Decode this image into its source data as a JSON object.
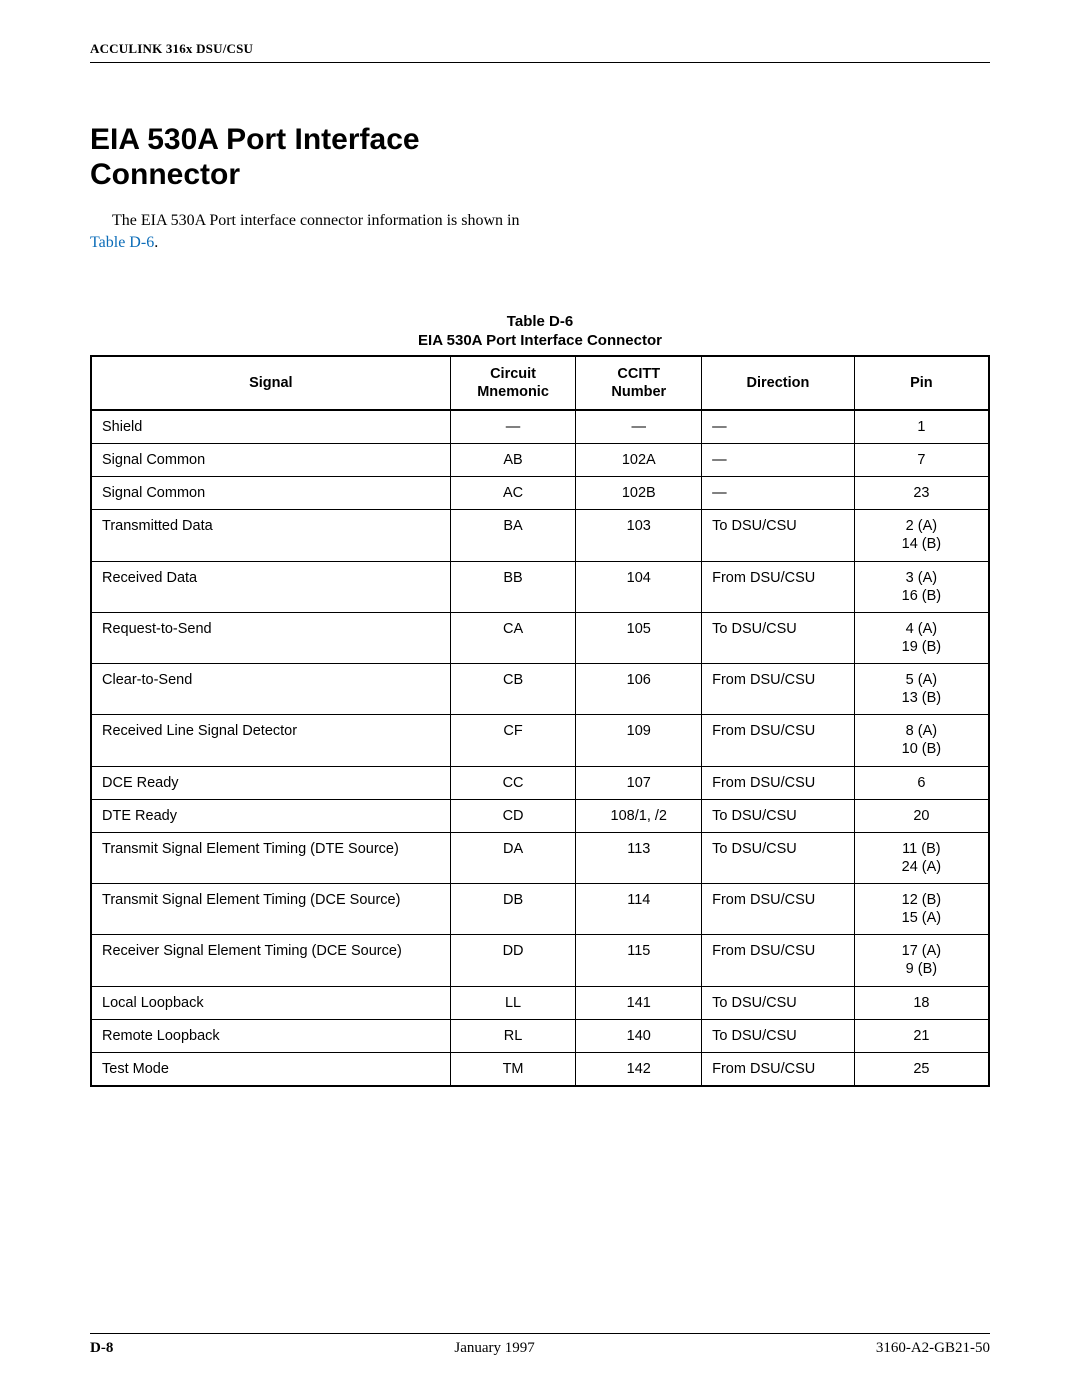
{
  "header": {
    "product": "ACCULINK 316x DSU/CSU"
  },
  "title": "EIA 530A Port Interface\nConnector",
  "intro": {
    "pre": "The EIA 530A Port interface connector information is shown in ",
    "link": "Table D-6",
    "post": "."
  },
  "table": {
    "caption_top": "Table D-6",
    "caption_sub": "EIA 530A Port Interface Connector",
    "columns": [
      "Signal",
      "Circuit\nMnemonic",
      "CCITT\nNumber",
      "Direction",
      "Pin"
    ],
    "rows": [
      {
        "signal": "Shield",
        "mnemonic": "—",
        "ccitt": "—",
        "direction": "—",
        "pin": "1"
      },
      {
        "signal": "Signal Common",
        "mnemonic": "AB",
        "ccitt": "102A",
        "direction": "—",
        "pin": "7"
      },
      {
        "signal": "Signal Common",
        "mnemonic": "AC",
        "ccitt": "102B",
        "direction": "—",
        "pin": "23"
      },
      {
        "signal": "Transmitted Data",
        "mnemonic": "BA",
        "ccitt": "103",
        "direction": "To DSU/CSU",
        "pin": "2 (A)\n14 (B)"
      },
      {
        "signal": "Received Data",
        "mnemonic": "BB",
        "ccitt": "104",
        "direction": "From DSU/CSU",
        "pin": "3 (A)\n16 (B)"
      },
      {
        "signal": "Request-to-Send",
        "mnemonic": "CA",
        "ccitt": "105",
        "direction": "To DSU/CSU",
        "pin": "4 (A)\n19 (B)"
      },
      {
        "signal": "Clear-to-Send",
        "mnemonic": "CB",
        "ccitt": "106",
        "direction": "From DSU/CSU",
        "pin": "5 (A)\n13 (B)"
      },
      {
        "signal": "Received Line Signal Detector",
        "mnemonic": "CF",
        "ccitt": "109",
        "direction": "From DSU/CSU",
        "pin": "8 (A)\n10 (B)"
      },
      {
        "signal": "DCE Ready",
        "mnemonic": "CC",
        "ccitt": "107",
        "direction": "From DSU/CSU",
        "pin": "6"
      },
      {
        "signal": "DTE Ready",
        "mnemonic": "CD",
        "ccitt": "108/1, /2",
        "direction": "To DSU/CSU",
        "pin": "20"
      },
      {
        "signal": "Transmit Signal Element Timing (DTE Source)",
        "mnemonic": "DA",
        "ccitt": "113",
        "direction": "To DSU/CSU",
        "pin": "11 (B)\n24 (A)"
      },
      {
        "signal": "Transmit Signal Element Timing (DCE Source)",
        "mnemonic": "DB",
        "ccitt": "114",
        "direction": "From DSU/CSU",
        "pin": "12 (B)\n15 (A)"
      },
      {
        "signal": "Receiver Signal Element Timing (DCE Source)",
        "mnemonic": "DD",
        "ccitt": "115",
        "direction": "From DSU/CSU",
        "pin": "17 (A)\n9 (B)"
      },
      {
        "signal": "Local Loopback",
        "mnemonic": "LL",
        "ccitt": "141",
        "direction": "To DSU/CSU",
        "pin": "18"
      },
      {
        "signal": "Remote Loopback",
        "mnemonic": "RL",
        "ccitt": "140",
        "direction": "To DSU/CSU",
        "pin": "21"
      },
      {
        "signal": "Test Mode",
        "mnemonic": "TM",
        "ccitt": "142",
        "direction": "From DSU/CSU",
        "pin": "25"
      }
    ]
  },
  "footer": {
    "page": "D-8",
    "date": "January 1997",
    "doc": "3160-A2-GB21-50"
  }
}
